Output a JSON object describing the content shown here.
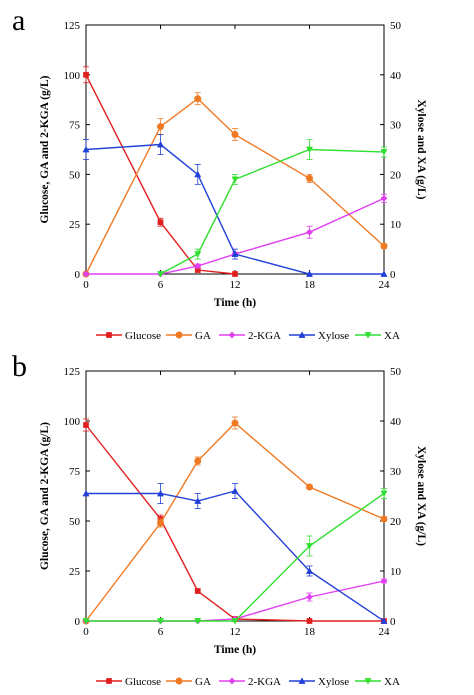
{
  "chart_data": [
    {
      "type": "line",
      "panel_label": "a",
      "xlabel": "Time (h)",
      "ylabel": "Glucose, GA and 2-KGA (g/L)",
      "y2label": "Xylose and XA (g/L)",
      "xlim": [
        0,
        24
      ],
      "ylim": [
        0,
        125
      ],
      "y2lim": [
        0,
        50
      ],
      "xticks": [
        "0",
        "6",
        "12",
        "18",
        "24"
      ],
      "yticks": [
        "0",
        "25",
        "50",
        "75",
        "100",
        "125"
      ],
      "y2ticks": [
        "0",
        "10",
        "20",
        "30",
        "40",
        "50"
      ],
      "grid": false,
      "legend_position": "bottom",
      "series": [
        {
          "name": "Glucose",
          "color": "#e02020",
          "marker": "square",
          "axis": "left",
          "x": [
            0,
            6,
            9,
            12
          ],
          "y": [
            100,
            26,
            2,
            0
          ],
          "err": [
            4,
            2,
            1,
            0
          ]
        },
        {
          "name": "GA",
          "color": "#f07a24",
          "marker": "circle",
          "axis": "left",
          "x": [
            0,
            6,
            9,
            12,
            18,
            24
          ],
          "y": [
            0,
            74,
            88,
            70,
            48,
            14
          ],
          "err": [
            0,
            4,
            3,
            3,
            2,
            1
          ]
        },
        {
          "name": "2-KGA",
          "color": "#e040f0",
          "marker": "diamond",
          "axis": "left",
          "x": [
            0,
            6,
            9,
            12,
            18,
            24
          ],
          "y": [
            0,
            0,
            4,
            10,
            21,
            38
          ],
          "err": [
            0,
            0,
            1,
            1,
            3,
            2
          ]
        },
        {
          "name": "Xylose",
          "color": "#2040d8",
          "marker": "triangle-up",
          "axis": "right",
          "x": [
            0,
            6,
            9,
            12,
            18,
            24
          ],
          "y": [
            25,
            26,
            20,
            4,
            0,
            0
          ],
          "err": [
            2,
            2,
            2,
            1,
            0,
            0
          ]
        },
        {
          "name": "XA",
          "color": "#30e030",
          "marker": "triangle-down",
          "axis": "right",
          "x": [
            6,
            9,
            12,
            18,
            24
          ],
          "y": [
            0,
            4,
            19,
            25,
            24.5
          ],
          "err": [
            0,
            1,
            1,
            2,
            1
          ]
        }
      ]
    },
    {
      "type": "line",
      "panel_label": "b",
      "xlabel": "Time (h)",
      "ylabel": "Glucose, GA and 2-KGA (g/L)",
      "y2label": "Xylose and XA (g/L)",
      "xlim": [
        0,
        24
      ],
      "ylim": [
        0,
        125
      ],
      "y2lim": [
        0,
        50
      ],
      "xticks": [
        "0",
        "6",
        "12",
        "18",
        "24"
      ],
      "yticks": [
        "0",
        "25",
        "50",
        "75",
        "100",
        "125"
      ],
      "y2ticks": [
        "0",
        "10",
        "20",
        "30",
        "40",
        "50"
      ],
      "grid": false,
      "legend_position": "bottom",
      "series": [
        {
          "name": "Glucose",
          "color": "#e02020",
          "marker": "square",
          "axis": "left",
          "x": [
            0,
            6,
            9,
            12,
            18,
            24
          ],
          "y": [
            98,
            51,
            15,
            1,
            0,
            0
          ],
          "err": [
            3,
            2,
            1,
            0,
            0,
            0
          ]
        },
        {
          "name": "GA",
          "color": "#f07a24",
          "marker": "circle",
          "axis": "left",
          "x": [
            0,
            6,
            9,
            12,
            18,
            24
          ],
          "y": [
            0,
            49,
            80,
            99,
            67,
            51
          ],
          "err": [
            0,
            2,
            2,
            3,
            1,
            1
          ]
        },
        {
          "name": "2-KGA",
          "color": "#e040f0",
          "marker": "diamond",
          "axis": "left",
          "x": [
            0,
            6,
            9,
            12,
            18,
            24
          ],
          "y": [
            0,
            0,
            0,
            1,
            12,
            20
          ],
          "err": [
            0,
            0,
            0,
            0,
            2,
            1
          ]
        },
        {
          "name": "Xylose",
          "color": "#2040d8",
          "marker": "triangle-up",
          "axis": "right",
          "x": [
            0,
            6,
            9,
            12,
            18,
            24
          ],
          "y": [
            25.5,
            25.5,
            24,
            26,
            10,
            0
          ],
          "err": [
            0,
            2,
            1.5,
            1.5,
            1,
            0
          ]
        },
        {
          "name": "XA",
          "color": "#30e030",
          "marker": "triangle-down",
          "axis": "right",
          "x": [
            0,
            6,
            9,
            12,
            18,
            24
          ],
          "y": [
            0,
            0,
            0,
            0,
            15,
            25.5
          ],
          "err": [
            0,
            0,
            0,
            0,
            2,
            1
          ]
        }
      ]
    }
  ]
}
